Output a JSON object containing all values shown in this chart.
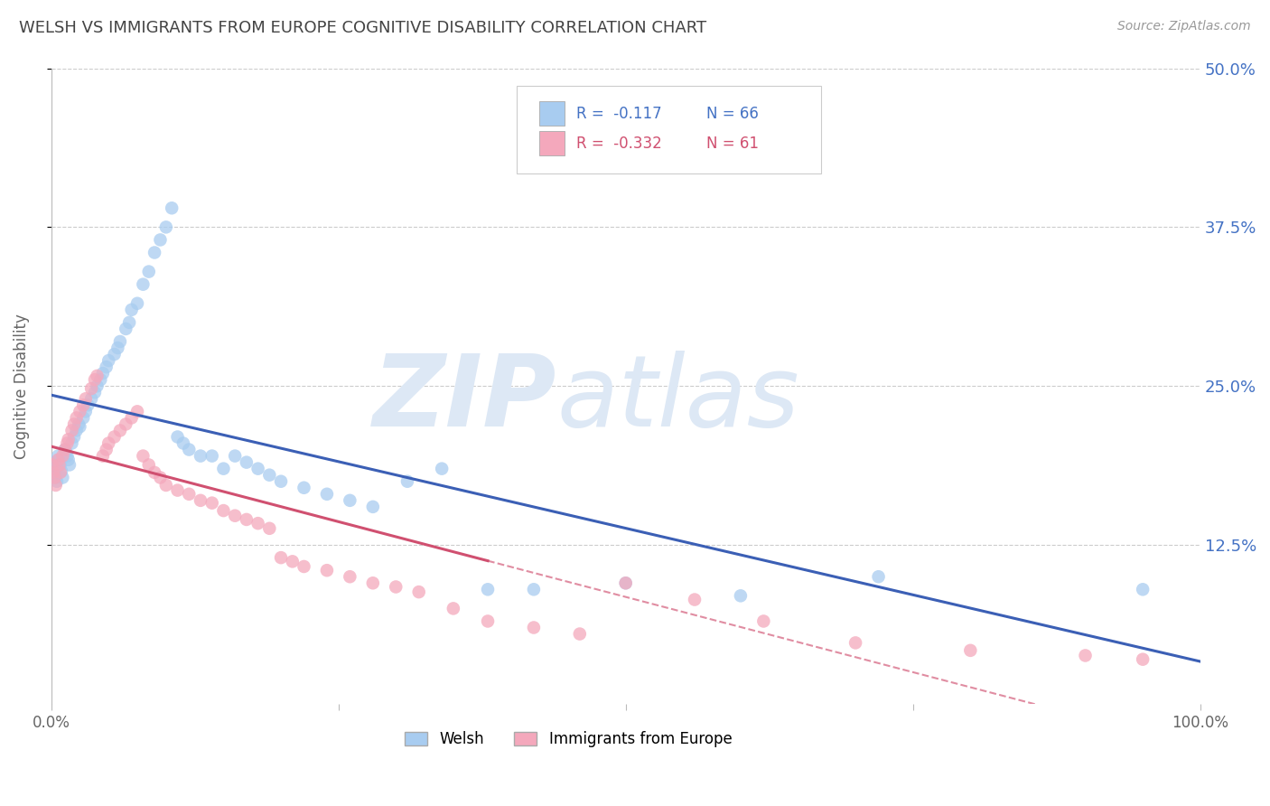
{
  "title": "WELSH VS IMMIGRANTS FROM EUROPE COGNITIVE DISABILITY CORRELATION CHART",
  "source": "Source: ZipAtlas.com",
  "ylabel": "Cognitive Disability",
  "watermark_line1": "ZIP",
  "watermark_line2": "atlas",
  "xlim": [
    0.0,
    1.0
  ],
  "ylim": [
    0.0,
    0.5
  ],
  "y_ticks": [
    0.125,
    0.25,
    0.375,
    0.5
  ],
  "y_tick_labels": [
    "12.5%",
    "25.0%",
    "37.5%",
    "50.0%"
  ],
  "welsh_R": -0.117,
  "welsh_N": 66,
  "immigrants_R": -0.332,
  "immigrants_N": 61,
  "legend_label_1": "Welsh",
  "legend_label_2": "Immigrants from Europe",
  "blue_color": "#A8CCF0",
  "pink_color": "#F4A8BC",
  "blue_line_color": "#3B5FB5",
  "pink_line_color": "#D05070",
  "welsh_x": [
    0.001,
    0.002,
    0.003,
    0.004,
    0.005,
    0.006,
    0.007,
    0.008,
    0.009,
    0.01,
    0.012,
    0.013,
    0.014,
    0.015,
    0.016,
    0.018,
    0.02,
    0.022,
    0.024,
    0.025,
    0.028,
    0.03,
    0.032,
    0.035,
    0.038,
    0.04,
    0.043,
    0.045,
    0.048,
    0.05,
    0.055,
    0.058,
    0.06,
    0.065,
    0.068,
    0.07,
    0.075,
    0.08,
    0.085,
    0.09,
    0.095,
    0.1,
    0.105,
    0.11,
    0.115,
    0.12,
    0.13,
    0.14,
    0.15,
    0.16,
    0.17,
    0.18,
    0.19,
    0.2,
    0.22,
    0.24,
    0.26,
    0.28,
    0.31,
    0.34,
    0.38,
    0.42,
    0.5,
    0.6,
    0.72,
    0.95
  ],
  "welsh_y": [
    0.19,
    0.185,
    0.18,
    0.178,
    0.175,
    0.195,
    0.192,
    0.188,
    0.183,
    0.178,
    0.2,
    0.198,
    0.195,
    0.192,
    0.188,
    0.205,
    0.21,
    0.215,
    0.22,
    0.218,
    0.225,
    0.23,
    0.235,
    0.24,
    0.245,
    0.25,
    0.255,
    0.26,
    0.265,
    0.27,
    0.275,
    0.28,
    0.285,
    0.295,
    0.3,
    0.31,
    0.315,
    0.33,
    0.34,
    0.355,
    0.365,
    0.375,
    0.39,
    0.21,
    0.205,
    0.2,
    0.195,
    0.195,
    0.185,
    0.195,
    0.19,
    0.185,
    0.18,
    0.175,
    0.17,
    0.165,
    0.16,
    0.155,
    0.175,
    0.185,
    0.09,
    0.09,
    0.095,
    0.085,
    0.1,
    0.09
  ],
  "immigrants_x": [
    0.001,
    0.002,
    0.003,
    0.004,
    0.006,
    0.007,
    0.008,
    0.01,
    0.012,
    0.014,
    0.015,
    0.018,
    0.02,
    0.022,
    0.025,
    0.028,
    0.03,
    0.035,
    0.038,
    0.04,
    0.045,
    0.048,
    0.05,
    0.055,
    0.06,
    0.065,
    0.07,
    0.075,
    0.08,
    0.085,
    0.09,
    0.095,
    0.1,
    0.11,
    0.12,
    0.13,
    0.14,
    0.15,
    0.16,
    0.17,
    0.18,
    0.19,
    0.2,
    0.21,
    0.22,
    0.24,
    0.26,
    0.28,
    0.3,
    0.32,
    0.35,
    0.38,
    0.42,
    0.46,
    0.5,
    0.56,
    0.62,
    0.7,
    0.8,
    0.9,
    0.95
  ],
  "immigrants_y": [
    0.188,
    0.182,
    0.178,
    0.172,
    0.192,
    0.188,
    0.182,
    0.195,
    0.2,
    0.205,
    0.208,
    0.215,
    0.22,
    0.225,
    0.23,
    0.235,
    0.24,
    0.248,
    0.255,
    0.258,
    0.195,
    0.2,
    0.205,
    0.21,
    0.215,
    0.22,
    0.225,
    0.23,
    0.195,
    0.188,
    0.182,
    0.178,
    0.172,
    0.168,
    0.165,
    0.16,
    0.158,
    0.152,
    0.148,
    0.145,
    0.142,
    0.138,
    0.115,
    0.112,
    0.108,
    0.105,
    0.1,
    0.095,
    0.092,
    0.088,
    0.075,
    0.065,
    0.06,
    0.055,
    0.095,
    0.082,
    0.065,
    0.048,
    0.042,
    0.038,
    0.035
  ],
  "background_color": "#FFFFFF",
  "grid_color": "#CCCCCC",
  "title_color": "#444444",
  "right_label_color": "#4472C4",
  "watermark_color": "#DDE8F5"
}
